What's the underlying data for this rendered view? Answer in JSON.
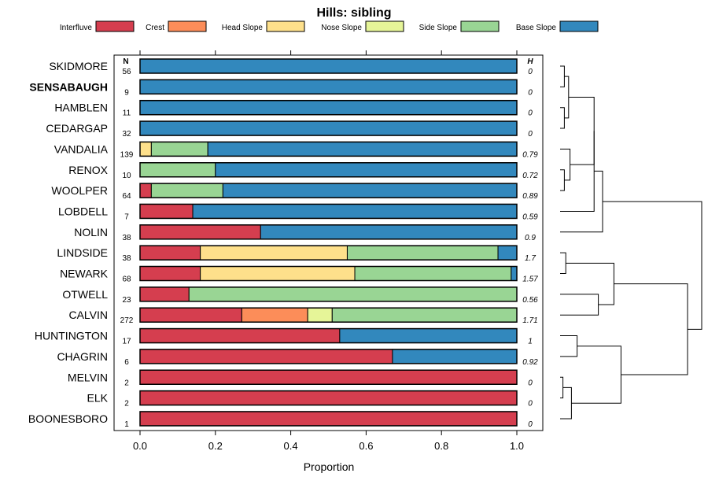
{
  "chart_data": {
    "type": "bar",
    "orientation": "horizontal",
    "stacked": true,
    "title": "Hills: sibling",
    "xlabel": "Proportion",
    "ylabel": "",
    "xlim": [
      0,
      1
    ],
    "x_ticks": [
      "0.0",
      "0.2",
      "0.4",
      "0.6",
      "0.8",
      "1.0"
    ],
    "x_tick_values": [
      0,
      0.2,
      0.4,
      0.6,
      0.8,
      1.0
    ],
    "n_header": "N",
    "h_header": "H",
    "highlighted": "SENSABAUGH",
    "series": [
      {
        "name": "Interfluve",
        "color": "#d53e4f"
      },
      {
        "name": "Crest",
        "color": "#fc8d59"
      },
      {
        "name": "Head Slope",
        "color": "#fee08b"
      },
      {
        "name": "Nose Slope",
        "color": "#e6f598"
      },
      {
        "name": "Side Slope",
        "color": "#99d594"
      },
      {
        "name": "Base Slope",
        "color": "#3288bd"
      }
    ],
    "categories": [
      {
        "label": "SKIDMORE",
        "n": "56",
        "h": "0",
        "values": [
          0,
          0,
          0,
          0,
          0,
          1.0
        ]
      },
      {
        "label": "SENSABAUGH",
        "n": "9",
        "h": "0",
        "values": [
          0,
          0,
          0,
          0,
          0,
          1.0
        ]
      },
      {
        "label": "HAMBLEN",
        "n": "11",
        "h": "0",
        "values": [
          0,
          0,
          0,
          0,
          0,
          1.0
        ]
      },
      {
        "label": "CEDARGAP",
        "n": "32",
        "h": "0",
        "values": [
          0,
          0,
          0,
          0,
          0,
          1.0
        ]
      },
      {
        "label": "VANDALIA",
        "n": "139",
        "h": "0.79",
        "values": [
          0,
          0,
          0.03,
          0,
          0.15,
          0.82
        ]
      },
      {
        "label": "RENOX",
        "n": "10",
        "h": "0.72",
        "values": [
          0,
          0,
          0,
          0,
          0.2,
          0.8
        ]
      },
      {
        "label": "WOOLPER",
        "n": "64",
        "h": "0.89",
        "values": [
          0.03,
          0,
          0,
          0,
          0.19,
          0.78
        ]
      },
      {
        "label": "LOBDELL",
        "n": "7",
        "h": "0.59",
        "values": [
          0.14,
          0,
          0,
          0,
          0,
          0.86
        ]
      },
      {
        "label": "NOLIN",
        "n": "38",
        "h": "0.9",
        "values": [
          0.32,
          0,
          0,
          0,
          0,
          0.68
        ]
      },
      {
        "label": "LINDSIDE",
        "n": "38",
        "h": "1.7",
        "values": [
          0.16,
          0,
          0.39,
          0,
          0.4,
          0.05
        ]
      },
      {
        "label": "NEWARK",
        "n": "68",
        "h": "1.57",
        "values": [
          0.16,
          0,
          0.41,
          0,
          0.415,
          0.015
        ]
      },
      {
        "label": "OTWELL",
        "n": "23",
        "h": "0.56",
        "values": [
          0.13,
          0,
          0,
          0,
          0.87,
          0
        ]
      },
      {
        "label": "CALVIN",
        "n": "272",
        "h": "1.71",
        "values": [
          0.27,
          0.175,
          0,
          0.065,
          0.49,
          0
        ]
      },
      {
        "label": "HUNTINGTON",
        "n": "17",
        "h": "1",
        "values": [
          0.53,
          0,
          0,
          0,
          0,
          0.47
        ]
      },
      {
        "label": "CHAGRIN",
        "n": "6",
        "h": "0.92",
        "values": [
          0.67,
          0,
          0,
          0,
          0,
          0.33
        ]
      },
      {
        "label": "MELVIN",
        "n": "2",
        "h": "0",
        "values": [
          1.0,
          0,
          0,
          0,
          0,
          0
        ]
      },
      {
        "label": "ELK",
        "n": "2",
        "h": "0",
        "values": [
          1.0,
          0,
          0,
          0,
          0,
          0
        ]
      },
      {
        "label": "BOONESBORO",
        "n": "1",
        "h": "0",
        "values": [
          1.0,
          0,
          0,
          0,
          0,
          0
        ]
      }
    ],
    "dendrogram": {
      "orientation": "right",
      "merges": [
        [
          0,
          1,
          0.03
        ],
        [
          2,
          3,
          0.03
        ],
        [
          "m0",
          "m1",
          0.06
        ],
        [
          5,
          6,
          0.03
        ],
        [
          4,
          "m3",
          0.07
        ],
        [
          "m2",
          "m4",
          0.24
        ],
        [
          "m5",
          7,
          0.24
        ],
        [
          "m6",
          8,
          0.3
        ],
        [
          9,
          10,
          0.04
        ],
        [
          11,
          12,
          0.27
        ],
        [
          "m8",
          "m9",
          0.38
        ],
        [
          13,
          14,
          0.12
        ],
        [
          15,
          16,
          0.02
        ],
        [
          "m12",
          17,
          0.08
        ],
        [
          "m11",
          "m13",
          0.43
        ],
        [
          "m10",
          "m14",
          0.9
        ],
        [
          "m7",
          "m15",
          1.0
        ]
      ]
    }
  }
}
